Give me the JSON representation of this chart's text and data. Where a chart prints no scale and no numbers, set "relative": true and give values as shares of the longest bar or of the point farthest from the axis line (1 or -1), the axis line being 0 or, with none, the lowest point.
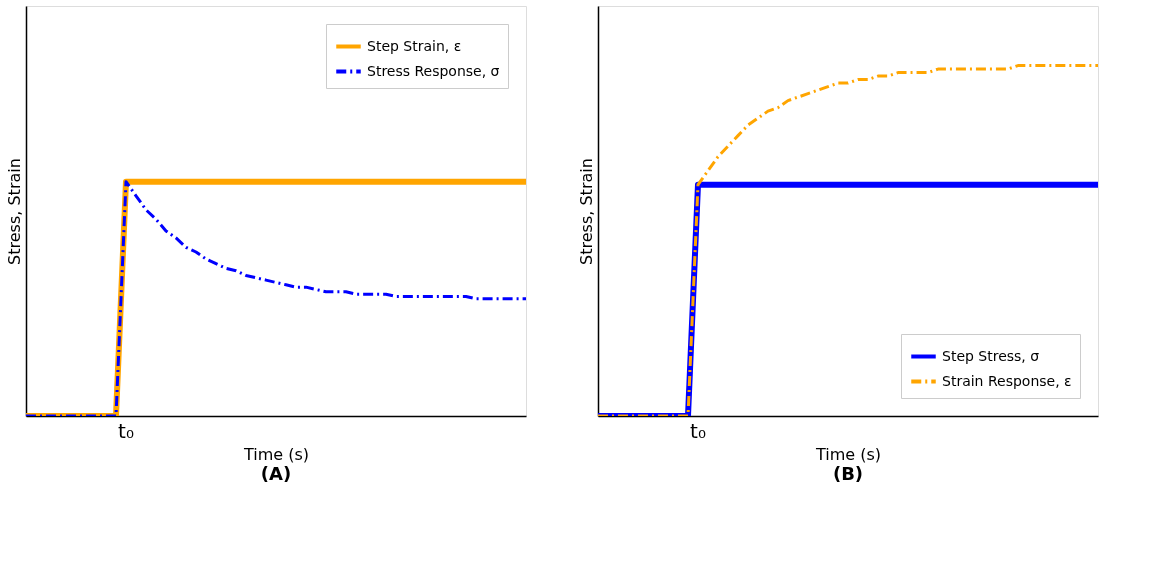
{
  "chart_data": [
    {
      "type": "line",
      "title": "(A)",
      "xlabel": "Time (s)",
      "ylabel": "Stress, Strain",
      "relative": true,
      "annotations": [
        "t₀"
      ],
      "grid": false,
      "legend": "top right",
      "marker": "none",
      "categories": [
        null,
        null,
        null,
        null,
        null,
        null,
        null,
        null,
        null,
        null,
        null,
        null,
        null,
        null,
        null,
        null,
        null,
        null,
        null,
        null,
        null,
        null,
        null,
        null,
        null,
        null,
        null,
        null,
        null,
        null,
        null,
        null,
        null,
        null,
        null,
        null,
        null,
        null,
        null,
        null,
        null,
        null,
        null,
        null,
        null,
        null,
        null,
        null,
        null,
        null,
        null
      ],
      "series": [
        {
          "name": "Step Strain, ε",
          "color": "#ffa500",
          "line_style": "solid",
          "values": [
            0,
            0,
            0,
            0,
            0,
            0,
            0,
            0,
            0,
            0,
            1,
            1,
            1,
            1,
            1,
            1,
            1,
            1,
            1,
            1,
            1,
            1,
            1,
            1,
            1,
            1,
            1,
            1,
            1,
            1,
            1,
            1,
            1,
            1,
            1,
            1,
            1,
            1,
            1,
            1,
            1,
            1,
            1,
            1,
            1,
            1,
            1,
            1,
            1,
            1,
            1
          ]
        },
        {
          "name": "Stress Response, σ",
          "color": "#0000ff",
          "line_style": "dashed",
          "values": [
            0,
            0,
            0,
            0,
            0,
            0,
            0,
            0,
            0,
            0,
            1,
            0.94,
            0.88,
            0.84,
            0.79,
            0.76,
            0.72,
            0.7,
            0.67,
            0.65,
            0.63,
            0.62,
            0.6,
            0.59,
            0.58,
            0.57,
            0.56,
            0.55,
            0.55,
            0.54,
            0.53,
            0.53,
            0.53,
            0.52,
            0.52,
            0.52,
            0.52,
            0.51,
            0.51,
            0.51,
            0.51,
            0.51,
            0.51,
            0.51,
            0.51,
            0.5,
            0.5,
            0.5,
            0.5,
            0.5,
            0.5
          ]
        }
      ]
    },
    {
      "type": "line",
      "title": "(B)",
      "xlabel": "Time (s)",
      "ylabel": "Stress, Strain",
      "relative": true,
      "annotations": [
        "t₀"
      ],
      "grid": false,
      "legend": "bottom right",
      "marker": "none",
      "categories": [
        null,
        null,
        null,
        null,
        null,
        null,
        null,
        null,
        null,
        null,
        null,
        null,
        null,
        null,
        null,
        null,
        null,
        null,
        null,
        null,
        null,
        null,
        null,
        null,
        null,
        null,
        null,
        null,
        null,
        null,
        null,
        null,
        null,
        null,
        null,
        null,
        null,
        null,
        null,
        null,
        null,
        null,
        null,
        null,
        null,
        null,
        null,
        null,
        null,
        null,
        null
      ],
      "series": [
        {
          "name": "Step Stress, σ",
          "color": "#0000ff",
          "line_style": "solid",
          "values": [
            0,
            0,
            0,
            0,
            0,
            0,
            0,
            0,
            0,
            0,
            0.66,
            0.66,
            0.66,
            0.66,
            0.66,
            0.66,
            0.66,
            0.66,
            0.66,
            0.66,
            0.66,
            0.66,
            0.66,
            0.66,
            0.66,
            0.66,
            0.66,
            0.66,
            0.66,
            0.66,
            0.66,
            0.66,
            0.66,
            0.66,
            0.66,
            0.66,
            0.66,
            0.66,
            0.66,
            0.66,
            0.66,
            0.66,
            0.66,
            0.66,
            0.66,
            0.66,
            0.66,
            0.66,
            0.66,
            0.66,
            0.66
          ]
        },
        {
          "name": "Strain Response, ε",
          "color": "#ffa500",
          "line_style": "dashed",
          "values": [
            0,
            0,
            0,
            0,
            0,
            0,
            0,
            0,
            0,
            0,
            0.66,
            0.7,
            0.74,
            0.77,
            0.8,
            0.83,
            0.85,
            0.87,
            0.88,
            0.9,
            0.91,
            0.92,
            0.93,
            0.94,
            0.95,
            0.95,
            0.96,
            0.96,
            0.97,
            0.97,
            0.98,
            0.98,
            0.98,
            0.98,
            0.99,
            0.99,
            0.99,
            0.99,
            0.99,
            0.99,
            0.99,
            0.99,
            1,
            1,
            1,
            1,
            1,
            1,
            1,
            1,
            1
          ]
        }
      ]
    }
  ]
}
